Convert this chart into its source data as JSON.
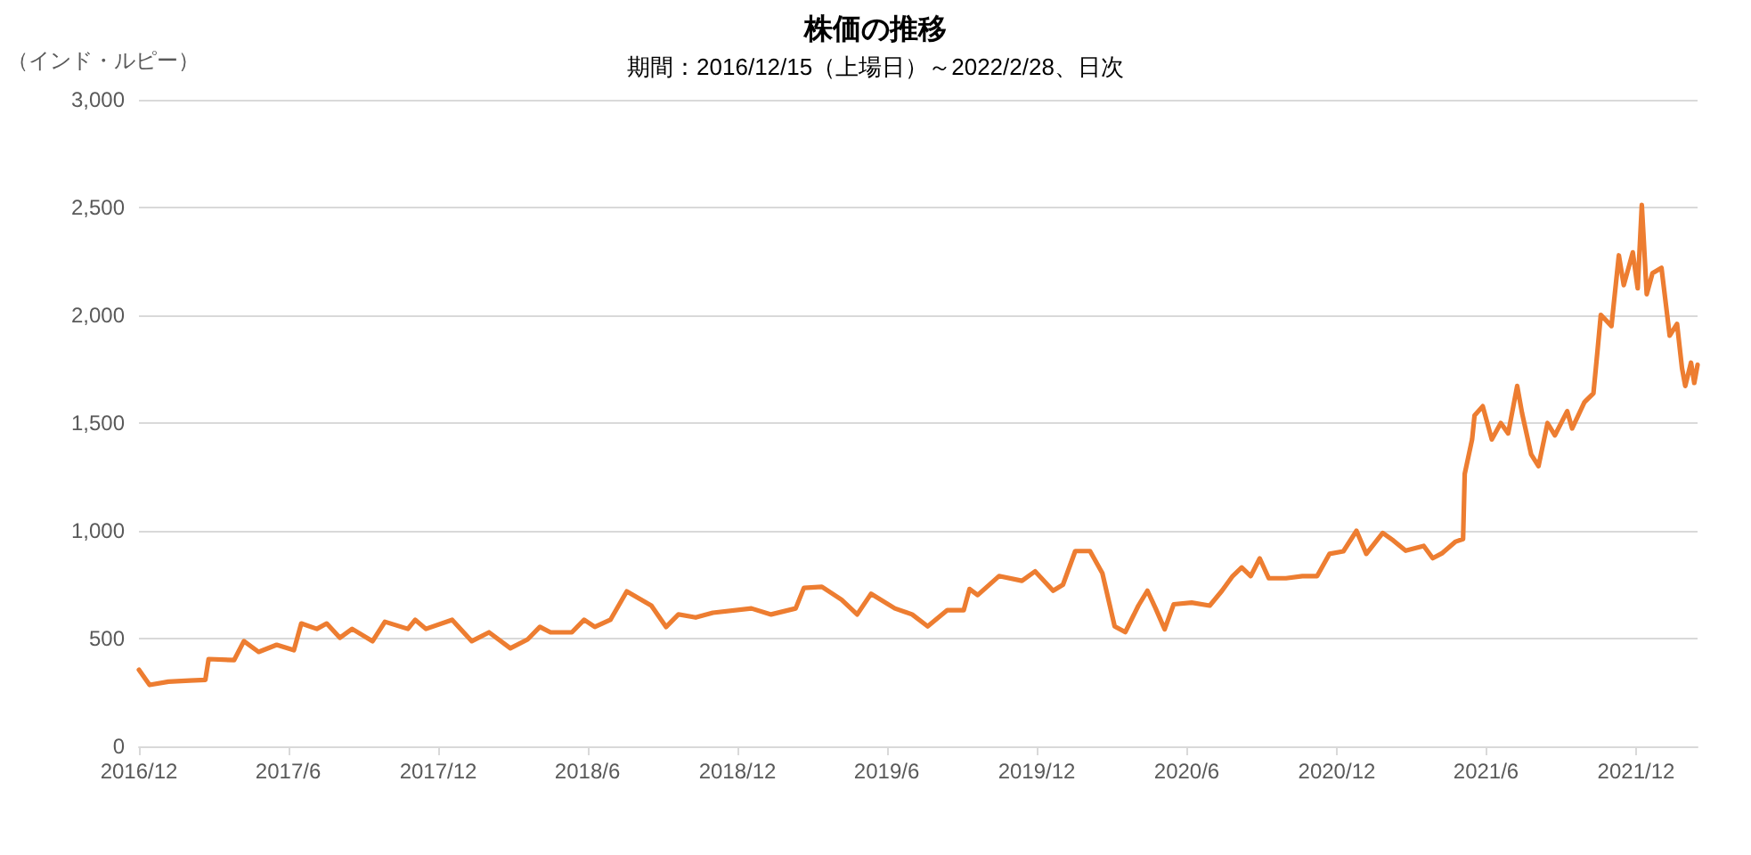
{
  "chart_data": {
    "type": "line",
    "title": "株価の推移",
    "subtitle": "期間：2016/12/15（上場日）～2022/2/28、日次",
    "ylabel": "（インド・ルピー）",
    "series": [
      {
        "color": "#ed7d31",
        "x": [
          "2016-12-15",
          "2016-12-28",
          "2017-01-20",
          "2017-02-15",
          "2017-03-06",
          "2017-03-10",
          "2017-04-10",
          "2017-04-22",
          "2017-05-10",
          "2017-06-01",
          "2017-06-22",
          "2017-07-01",
          "2017-07-20",
          "2017-08-01",
          "2017-08-17",
          "2017-09-01",
          "2017-09-26",
          "2017-10-11",
          "2017-11-08",
          "2017-11-17",
          "2017-11-30",
          "2018-01-01",
          "2018-01-25",
          "2018-02-15",
          "2018-03-13",
          "2018-04-03",
          "2018-04-18",
          "2018-05-01",
          "2018-05-27",
          "2018-06-11",
          "2018-06-24",
          "2018-07-13",
          "2018-08-02",
          "2018-09-01",
          "2018-09-19",
          "2018-10-04",
          "2018-10-25",
          "2018-11-15",
          "2019-01-01",
          "2019-01-25",
          "2019-02-24",
          "2019-03-06",
          "2019-03-28",
          "2019-04-21",
          "2019-05-10",
          "2019-05-27",
          "2019-06-25",
          "2019-07-16",
          "2019-08-04",
          "2019-08-28",
          "2019-09-17",
          "2019-09-24",
          "2019-10-04",
          "2019-10-30",
          "2019-11-27",
          "2019-12-13",
          "2020-01-04",
          "2020-01-16",
          "2020-01-31",
          "2020-02-18",
          "2020-03-04",
          "2020-03-19",
          "2020-04-01",
          "2020-04-17",
          "2020-04-28",
          "2020-05-08",
          "2020-05-19",
          "2020-05-30",
          "2020-06-21",
          "2020-07-13",
          "2020-07-28",
          "2020-08-10",
          "2020-08-21",
          "2020-09-01",
          "2020-09-12",
          "2020-09-23",
          "2020-10-14",
          "2020-11-03",
          "2020-11-21",
          "2020-12-06",
          "2020-12-23",
          "2021-01-08",
          "2021-01-20",
          "2021-02-09",
          "2021-02-22",
          "2021-03-09",
          "2021-03-31",
          "2021-04-11",
          "2021-04-22",
          "2021-05-09",
          "2021-05-18",
          "2021-05-20",
          "2021-05-29",
          "2021-06-01",
          "2021-06-11",
          "2021-06-22",
          "2021-07-03",
          "2021-07-12",
          "2021-07-23",
          "2021-07-29",
          "2021-08-09",
          "2021-08-18",
          "2021-08-29",
          "2021-09-07",
          "2021-09-22",
          "2021-09-28",
          "2021-10-13",
          "2021-10-24",
          "2021-10-29",
          "2021-11-02",
          "2021-11-15",
          "2021-11-24",
          "2021-11-30",
          "2021-12-11",
          "2021-12-17",
          "2021-12-22",
          "2021-12-28",
          "2022-01-04",
          "2022-01-15",
          "2022-01-25",
          "2022-02-03",
          "2022-02-09",
          "2022-02-13",
          "2022-02-20",
          "2022-02-24",
          "2022-02-28"
        ],
        "values": [
          355,
          285,
          300,
          305,
          308,
          405,
          400,
          488,
          438,
          471,
          446,
          570,
          545,
          570,
          504,
          545,
          488,
          578,
          545,
          587,
          545,
          587,
          488,
          529,
          455,
          496,
          554,
          529,
          529,
          587,
          554,
          587,
          719,
          653,
          554,
          612,
          598,
          620,
          640,
          612,
          640,
          735,
          740,
          680,
          612,
          708,
          640,
          612,
          557,
          632,
          632,
          730,
          702,
          790,
          768,
          812,
          722,
          750,
          906,
          906,
          804,
          557,
          530,
          653,
          722,
          640,
          543,
          659,
          667,
          653,
          722,
          790,
          830,
          790,
          872,
          780,
          780,
          790,
          790,
          893,
          905,
          1000,
          893,
          990,
          955,
          908,
          930,
          873,
          895,
          950,
          962,
          1264,
          1424,
          1535,
          1578,
          1424,
          1500,
          1452,
          1672,
          1545,
          1355,
          1300,
          1500,
          1443,
          1555,
          1475,
          1597,
          1638,
          1837,
          2002,
          1950,
          2278,
          2140,
          2292,
          2125,
          2512,
          2098,
          2195,
          2220,
          1905,
          1960,
          1755,
          1672,
          1780,
          1686,
          1770
        ]
      }
    ],
    "xlim": [
      "2016-12-15",
      "2022-02-28"
    ],
    "xticks": [
      {
        "value": "2016-12-15",
        "label": "2016/12"
      },
      {
        "value": "2017-06-15",
        "label": "2017/6"
      },
      {
        "value": "2017-12-15",
        "label": "2017/12"
      },
      {
        "value": "2018-06-15",
        "label": "2018/6"
      },
      {
        "value": "2018-12-15",
        "label": "2018/12"
      },
      {
        "value": "2019-06-15",
        "label": "2019/6"
      },
      {
        "value": "2019-12-15",
        "label": "2019/12"
      },
      {
        "value": "2020-06-15",
        "label": "2020/6"
      },
      {
        "value": "2020-12-15",
        "label": "2020/12"
      },
      {
        "value": "2021-06-15",
        "label": "2021/6"
      },
      {
        "value": "2021-12-15",
        "label": "2021/12"
      }
    ],
    "ylim": [
      0,
      3000
    ],
    "yticks": [
      0,
      500,
      {
        "value": 1000,
        "label": "1,000"
      },
      {
        "value": 1500,
        "label": "1,500"
      },
      {
        "value": 2000,
        "label": "2,000"
      },
      {
        "value": 2500,
        "label": "2,500"
      },
      {
        "value": 3000,
        "label": "3,000"
      }
    ],
    "grid": "y",
    "marker": "none",
    "line_style": "solid"
  }
}
